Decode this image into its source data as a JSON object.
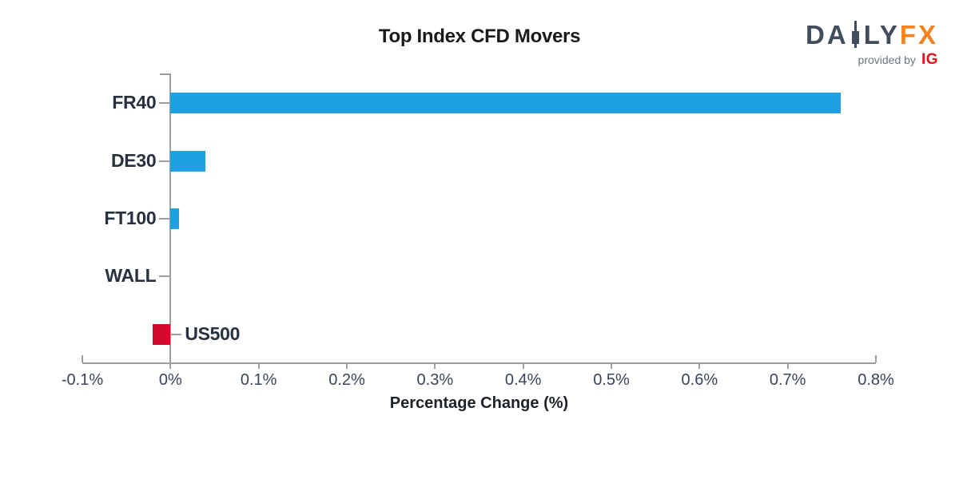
{
  "logo": {
    "word_left": "DA",
    "word_right": "LY",
    "word_fx": "FX",
    "tagline": "provided by",
    "provider": "IG",
    "slate_color": "#414d5d",
    "orange_color": "#f5821f",
    "ig_red_color": "#e3131b"
  },
  "chart_data": {
    "type": "bar",
    "orientation": "horizontal",
    "title": "Top Index CFD Movers",
    "categories": [
      "FR40",
      "DE30",
      "FT100",
      "WALL",
      "US500"
    ],
    "values": [
      0.76,
      0.04,
      0.01,
      0.0,
      -0.02
    ],
    "xlabel": "Percentage Change (%)",
    "ylabel": "",
    "xlim": [
      -0.1,
      0.8
    ],
    "x_ticks": [
      -0.1,
      0,
      0.1,
      0.2,
      0.3,
      0.4,
      0.5,
      0.6,
      0.7,
      0.8
    ],
    "x_tick_labels": [
      "-0.1%",
      "0%",
      "0.1%",
      "0.2%",
      "0.3%",
      "0.4%",
      "0.5%",
      "0.6%",
      "0.7%",
      "0.8%"
    ],
    "grid": false,
    "legend_position": "none",
    "positive_color": "#1fa0e4",
    "negative_color": "#d20a2e"
  }
}
